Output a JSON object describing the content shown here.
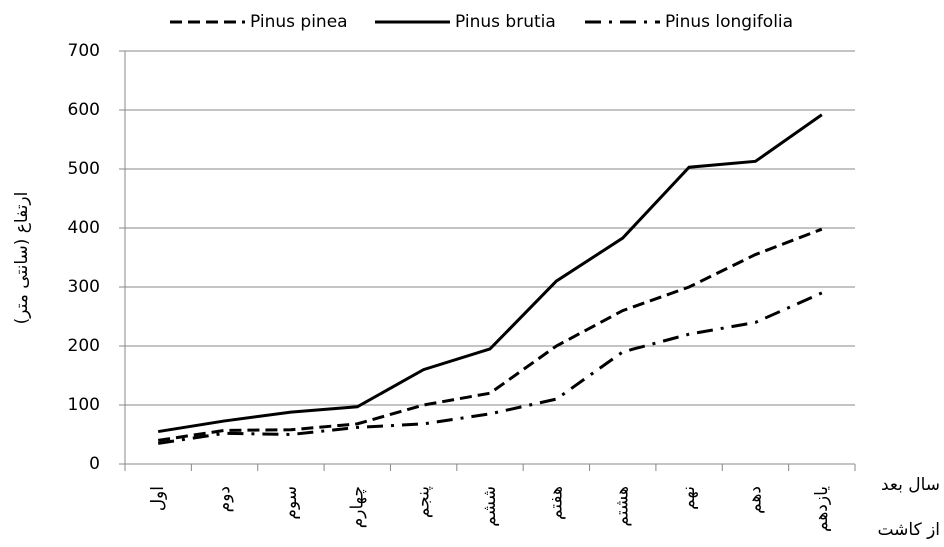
{
  "chart_data": {
    "type": "line",
    "y_label": "ارتفاع (سانتی متر)",
    "x_label_lines": [
      "سال بعد",
      "از کاشت"
    ],
    "categories": [
      "اول",
      "دوم",
      "سوم",
      "چهارم",
      "پنجم",
      "ششم",
      "هفتم",
      "هشتم",
      "نهم",
      "دهم",
      "یازدهم"
    ],
    "series": [
      {
        "name": "Pinus pinea",
        "color": "#000000",
        "style": "dashed",
        "values": [
          40,
          57,
          58,
          68,
          100,
          120,
          200,
          260,
          300,
          355,
          398
        ]
      },
      {
        "name": "Pinus brutia",
        "color": "#000000",
        "style": "solid",
        "values": [
          55,
          73,
          88,
          97,
          160,
          195,
          310,
          383,
          503,
          513,
          592
        ]
      },
      {
        "name": "Pinus longifolia",
        "color": "#000000",
        "style": "dashdot",
        "values": [
          35,
          52,
          50,
          62,
          68,
          85,
          110,
          190,
          220,
          240,
          290
        ]
      }
    ],
    "ylim": [
      0,
      700
    ],
    "yticks": [
      0,
      100,
      200,
      300,
      400,
      500,
      600,
      700
    ],
    "grid": true,
    "legend": "top"
  }
}
